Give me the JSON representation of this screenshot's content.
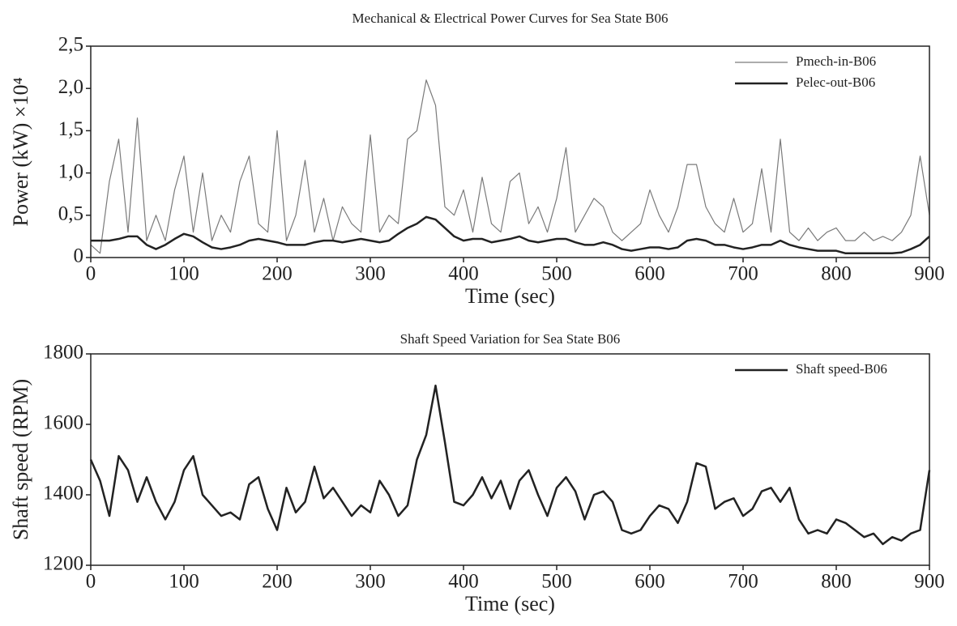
{
  "chart_data": [
    {
      "type": "line",
      "title": "Mechanical & Electrical Power Curves for Sea State B06",
      "xlabel": "Time (sec)",
      "ylabel": "Power (kW) ×10⁴",
      "x": [
        0,
        10,
        20,
        30,
        40,
        50,
        60,
        70,
        80,
        90,
        100,
        110,
        120,
        130,
        140,
        150,
        160,
        170,
        180,
        190,
        200,
        210,
        220,
        230,
        240,
        250,
        260,
        270,
        280,
        290,
        300,
        310,
        320,
        330,
        340,
        350,
        360,
        370,
        380,
        390,
        400,
        410,
        420,
        430,
        440,
        450,
        460,
        470,
        480,
        490,
        500,
        510,
        520,
        530,
        540,
        550,
        560,
        570,
        580,
        590,
        600,
        610,
        620,
        630,
        640,
        650,
        660,
        670,
        680,
        690,
        700,
        710,
        720,
        730,
        740,
        750,
        760,
        770,
        780,
        790,
        800,
        810,
        820,
        830,
        840,
        850,
        860,
        870,
        880,
        890,
        900
      ],
      "series": [
        {
          "name": "Pmech-in-B06",
          "color": "#7a7a7a",
          "width": 1.2,
          "values": [
            0.15,
            0.05,
            0.9,
            1.4,
            0.3,
            1.65,
            0.2,
            0.5,
            0.2,
            0.8,
            1.2,
            0.3,
            1.0,
            0.2,
            0.5,
            0.3,
            0.9,
            1.2,
            0.4,
            0.3,
            1.5,
            0.2,
            0.5,
            1.15,
            0.3,
            0.7,
            0.2,
            0.6,
            0.4,
            0.3,
            1.45,
            0.3,
            0.5,
            0.4,
            1.4,
            1.5,
            2.1,
            1.8,
            0.6,
            0.5,
            0.8,
            0.3,
            0.95,
            0.4,
            0.3,
            0.9,
            1.0,
            0.4,
            0.6,
            0.3,
            0.7,
            1.3,
            0.3,
            0.5,
            0.7,
            0.6,
            0.3,
            0.2,
            0.3,
            0.4,
            0.8,
            0.5,
            0.3,
            0.6,
            1.1,
            1.1,
            0.6,
            0.4,
            0.3,
            0.7,
            0.3,
            0.4,
            1.05,
            0.3,
            1.4,
            0.3,
            0.2,
            0.35,
            0.2,
            0.3,
            0.35,
            0.2,
            0.2,
            0.3,
            0.2,
            0.25,
            0.2,
            0.3,
            0.5,
            1.2,
            0.5
          ]
        },
        {
          "name": "Pelec-out-B06",
          "color": "#222222",
          "width": 2.5,
          "values": [
            0.2,
            0.2,
            0.2,
            0.22,
            0.25,
            0.25,
            0.15,
            0.1,
            0.15,
            0.22,
            0.28,
            0.25,
            0.18,
            0.12,
            0.1,
            0.12,
            0.15,
            0.2,
            0.22,
            0.2,
            0.18,
            0.15,
            0.15,
            0.15,
            0.18,
            0.2,
            0.2,
            0.18,
            0.2,
            0.22,
            0.2,
            0.18,
            0.2,
            0.28,
            0.35,
            0.4,
            0.48,
            0.45,
            0.35,
            0.25,
            0.2,
            0.22,
            0.22,
            0.18,
            0.2,
            0.22,
            0.25,
            0.2,
            0.18,
            0.2,
            0.22,
            0.22,
            0.18,
            0.15,
            0.15,
            0.18,
            0.15,
            0.1,
            0.08,
            0.1,
            0.12,
            0.12,
            0.1,
            0.12,
            0.2,
            0.22,
            0.2,
            0.15,
            0.15,
            0.12,
            0.1,
            0.12,
            0.15,
            0.15,
            0.2,
            0.15,
            0.12,
            0.1,
            0.08,
            0.08,
            0.08,
            0.05,
            0.05,
            0.05,
            0.05,
            0.05,
            0.05,
            0.06,
            0.1,
            0.15,
            0.25
          ]
        }
      ],
      "xlim": [
        0,
        900
      ],
      "xticks": [
        0,
        100,
        200,
        300,
        400,
        500,
        600,
        700,
        800,
        900
      ],
      "ylim": [
        0,
        2.5
      ],
      "yticks": [
        0,
        {
          "value": 0.5,
          "label": "0,5"
        },
        {
          "value": 1,
          "label": "1,0"
        },
        {
          "value": 1.5,
          "label": "1,5"
        },
        {
          "value": 2,
          "label": "2,0"
        },
        {
          "value": 2.5,
          "label": "2,5"
        }
      ],
      "legend": "upper right"
    },
    {
      "type": "line",
      "title": "Shaft Speed Variation for Sea State B06",
      "xlabel": "Time (sec)",
      "ylabel": "Shaft speed (RPM)",
      "x": [
        0,
        10,
        20,
        30,
        40,
        50,
        60,
        70,
        80,
        90,
        100,
        110,
        120,
        130,
        140,
        150,
        160,
        170,
        180,
        190,
        200,
        210,
        220,
        230,
        240,
        250,
        260,
        270,
        280,
        290,
        300,
        310,
        320,
        330,
        340,
        350,
        360,
        370,
        380,
        390,
        400,
        410,
        420,
        430,
        440,
        450,
        460,
        470,
        480,
        490,
        500,
        510,
        520,
        530,
        540,
        550,
        560,
        570,
        580,
        590,
        600,
        610,
        620,
        630,
        640,
        650,
        660,
        670,
        680,
        690,
        700,
        710,
        720,
        730,
        740,
        750,
        760,
        770,
        780,
        790,
        800,
        810,
        820,
        830,
        840,
        850,
        860,
        870,
        880,
        890,
        900
      ],
      "series": [
        {
          "name": "Shaft speed-B06",
          "color": "#222222",
          "width": 2.5,
          "values": [
            1500,
            1440,
            1340,
            1510,
            1470,
            1380,
            1450,
            1380,
            1330,
            1380,
            1470,
            1510,
            1400,
            1370,
            1340,
            1350,
            1330,
            1430,
            1450,
            1360,
            1300,
            1420,
            1350,
            1380,
            1480,
            1390,
            1420,
            1380,
            1340,
            1370,
            1350,
            1440,
            1400,
            1340,
            1370,
            1500,
            1570,
            1710,
            1550,
            1380,
            1370,
            1400,
            1450,
            1390,
            1440,
            1360,
            1440,
            1470,
            1400,
            1340,
            1420,
            1450,
            1410,
            1330,
            1400,
            1410,
            1380,
            1300,
            1290,
            1300,
            1340,
            1370,
            1360,
            1320,
            1380,
            1490,
            1480,
            1360,
            1380,
            1390,
            1340,
            1360,
            1410,
            1420,
            1380,
            1420,
            1330,
            1290,
            1300,
            1290,
            1330,
            1320,
            1300,
            1280,
            1290,
            1260,
            1280,
            1270,
            1290,
            1300,
            1470
          ]
        }
      ],
      "xlim": [
        0,
        900
      ],
      "xticks": [
        0,
        100,
        200,
        300,
        400,
        500,
        600,
        700,
        800,
        900
      ],
      "ylim": [
        1200,
        1800
      ],
      "yticks": [
        1200,
        1400,
        1600,
        1800
      ],
      "legend": "upper right"
    }
  ]
}
